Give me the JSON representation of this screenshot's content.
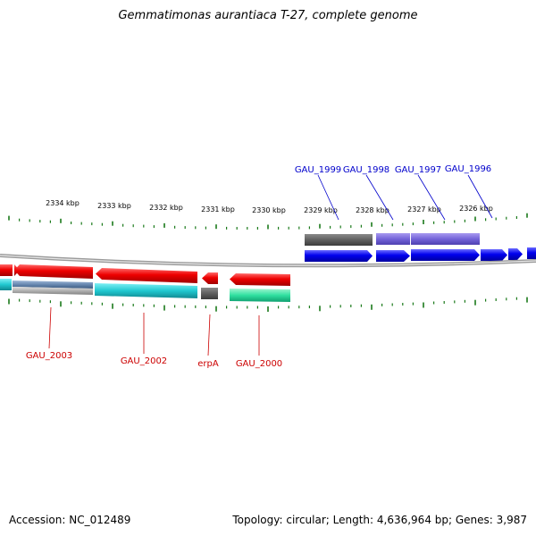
{
  "header": {
    "title": "Gemmatimonas aurantiaca T-27, complete genome"
  },
  "footer": {
    "accession": "Accession: NC_012489",
    "summary": "Topology: circular; Length: 4,636,964 bp; Genes: 3,987"
  },
  "ruler": {
    "ticks": [
      "2334 kbp",
      "2333 kbp",
      "2332 kbp",
      "2331 kbp",
      "2330 kbp",
      "2329 kbp",
      "2328 kbp",
      "2327 kbp",
      "2326 kbp"
    ]
  },
  "genes": {
    "forward": [
      "GAU_1999",
      "GAU_1998",
      "GAU_1997",
      "GAU_1996"
    ],
    "reverse": [
      "GAU_2003",
      "GAU_2002",
      "erpA",
      "GAU_2000"
    ]
  },
  "colors": {
    "forward_label": "#0000cc",
    "reverse_label": "#cc0000",
    "cds_forward": "#0000ee",
    "cds_reverse": "#ee0000",
    "tick": "#1a7a1a"
  }
}
